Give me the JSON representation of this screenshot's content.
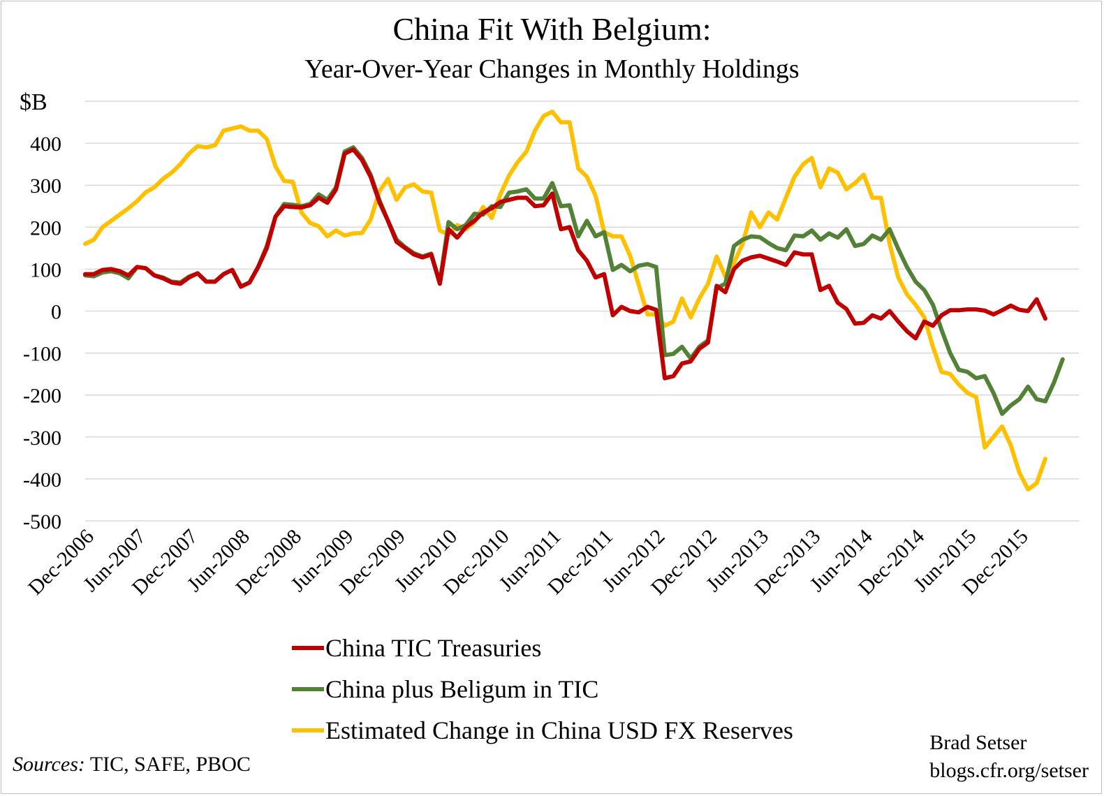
{
  "chart_data": {
    "type": "line",
    "title": "China Fit With Belgium:",
    "subtitle": "Year-Over-Year Changes in Monthly Holdings",
    "ylabel": "$B",
    "ylim": [
      -500,
      500
    ],
    "yticks": [
      400,
      300,
      200,
      100,
      0,
      -100,
      -200,
      -300,
      -400,
      -500
    ],
    "ytick_labels": [
      "400",
      "300",
      "200",
      "100",
      "0",
      "-100",
      "-200",
      "-300",
      "-400",
      "-500"
    ],
    "x_start": "Dec-2006",
    "x_tick_labels": [
      "Dec-2006",
      "Jun-2007",
      "Dec-2007",
      "Jun-2008",
      "Dec-2008",
      "Jun-2009",
      "Dec-2009",
      "Jun-2010",
      "Dec-2010",
      "Jun-2011",
      "Dec-2011",
      "Jun-2012",
      "Dec-2012",
      "Jun-2013",
      "Dec-2013",
      "Jun-2014",
      "Dec-2014",
      "Jun-2015",
      "Dec-2015"
    ],
    "grid": true,
    "legend_position": "bottom",
    "series": [
      {
        "name": "China TIC Treasuries",
        "color": "#c00000",
        "values": [
          88,
          88,
          98,
          100,
          95,
          85,
          105,
          102,
          85,
          78,
          68,
          65,
          80,
          90,
          70,
          70,
          88,
          98,
          58,
          68,
          105,
          150,
          225,
          250,
          248,
          247,
          252,
          270,
          258,
          290,
          375,
          385,
          360,
          320,
          260,
          215,
          165,
          150,
          135,
          128,
          135,
          65,
          195,
          175,
          200,
          215,
          235,
          245,
          260,
          265,
          270,
          270,
          250,
          252,
          280,
          195,
          200,
          145,
          120,
          80,
          88,
          -10,
          10,
          0,
          -3,
          10,
          3,
          -160,
          -155,
          -125,
          -120,
          -90,
          -75,
          60,
          45,
          100,
          120,
          128,
          132,
          125,
          118,
          110,
          140,
          135,
          135,
          50,
          60,
          20,
          5,
          -30,
          -28,
          -10,
          -18,
          0,
          -25,
          -48,
          -65,
          -25,
          -35,
          -10,
          2,
          2,
          4,
          4,
          1,
          -8,
          2,
          13,
          3,
          0,
          28,
          -18
        ]
      },
      {
        "name": "China plus Beligum in TIC",
        "color": "#538135",
        "values": [
          85,
          83,
          92,
          95,
          90,
          78,
          105,
          102,
          85,
          80,
          70,
          68,
          82,
          90,
          70,
          70,
          88,
          98,
          58,
          68,
          105,
          155,
          225,
          255,
          253,
          250,
          255,
          278,
          265,
          295,
          380,
          390,
          365,
          325,
          265,
          215,
          170,
          152,
          138,
          130,
          137,
          68,
          212,
          195,
          205,
          232,
          230,
          250,
          248,
          282,
          285,
          290,
          268,
          268,
          305,
          250,
          252,
          178,
          215,
          178,
          188,
          98,
          110,
          95,
          108,
          112,
          105,
          -105,
          -102,
          -85,
          -113,
          -85,
          -70,
          55,
          65,
          155,
          170,
          178,
          176,
          162,
          150,
          145,
          180,
          178,
          192,
          170,
          185,
          175,
          195,
          155,
          160,
          180,
          170,
          195,
          148,
          105,
          70,
          50,
          15,
          -45,
          -100,
          -140,
          -145,
          -160,
          -155,
          -195,
          -245,
          -225,
          -210,
          -180,
          -210,
          -215,
          -170,
          -115
        ]
      },
      {
        "name": "Estimated Change in China USD FX Reserves",
        "color": "#ffc000",
        "values": [
          160,
          170,
          200,
          215,
          230,
          245,
          262,
          283,
          295,
          315,
          330,
          350,
          375,
          393,
          390,
          395,
          430,
          435,
          440,
          430,
          430,
          410,
          345,
          310,
          308,
          235,
          210,
          202,
          178,
          192,
          180,
          185,
          186,
          218,
          285,
          315,
          265,
          295,
          302,
          285,
          282,
          192,
          182,
          205,
          195,
          212,
          248,
          222,
          278,
          323,
          355,
          380,
          430,
          465,
          475,
          450,
          450,
          340,
          320,
          275,
          188,
          178,
          178,
          132,
          62,
          -8,
          -8,
          -35,
          -25,
          30,
          -15,
          30,
          65,
          130,
          82,
          115,
          160,
          235,
          200,
          235,
          218,
          270,
          320,
          350,
          365,
          295,
          340,
          330,
          290,
          305,
          325,
          270,
          270,
          160,
          80,
          40,
          15,
          -15,
          -85,
          -145,
          -150,
          -175,
          -195,
          -205,
          -325,
          -300,
          -275,
          -320,
          -385,
          -425,
          -410,
          -352
        ]
      }
    ]
  },
  "sources": {
    "label": "Sources:",
    "text": " TIC, SAFE, PBOC"
  },
  "credit": {
    "author": "Brad Setser",
    "site": "blogs.cfr.org/setser"
  }
}
